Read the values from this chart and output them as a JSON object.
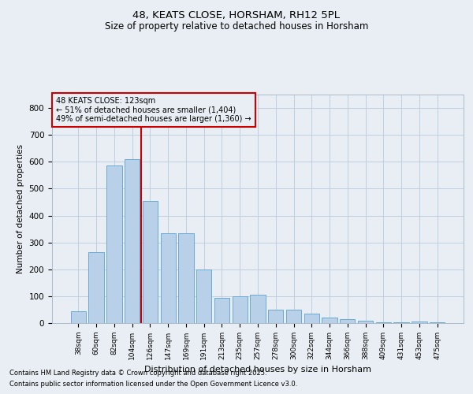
{
  "title1": "48, KEATS CLOSE, HORSHAM, RH12 5PL",
  "title2": "Size of property relative to detached houses in Horsham",
  "xlabel": "Distribution of detached houses by size in Horsham",
  "ylabel": "Number of detached properties",
  "categories": [
    "38sqm",
    "60sqm",
    "82sqm",
    "104sqm",
    "126sqm",
    "147sqm",
    "169sqm",
    "191sqm",
    "213sqm",
    "235sqm",
    "257sqm",
    "278sqm",
    "300sqm",
    "322sqm",
    "344sqm",
    "366sqm",
    "388sqm",
    "409sqm",
    "431sqm",
    "453sqm",
    "475sqm"
  ],
  "values": [
    45,
    265,
    585,
    610,
    455,
    335,
    335,
    200,
    95,
    100,
    105,
    50,
    50,
    35,
    20,
    15,
    10,
    2,
    2,
    5,
    2
  ],
  "bar_color": "#b8d0e8",
  "bar_edge_color": "#6aaad4",
  "grid_color": "#c0d0e0",
  "vline_x": 3.5,
  "vline_color": "#cc0000",
  "annotation_line1": "48 KEATS CLOSE: 123sqm",
  "annotation_line2": "← 51% of detached houses are smaller (1,404)",
  "annotation_line3": "49% of semi-detached houses are larger (1,360) →",
  "annotation_box_edge": "#cc0000",
  "footnote1": "Contains HM Land Registry data © Crown copyright and database right 2025.",
  "footnote2": "Contains public sector information licensed under the Open Government Licence v3.0.",
  "ylim": [
    0,
    850
  ],
  "yticks": [
    0,
    100,
    200,
    300,
    400,
    500,
    600,
    700,
    800
  ],
  "background_color": "#e8eef4",
  "plot_bg_color": "#e8eef4"
}
